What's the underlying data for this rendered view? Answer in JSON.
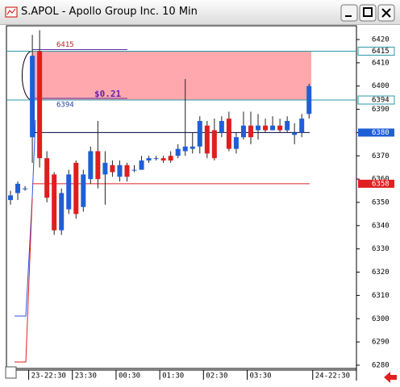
{
  "window": {
    "title": "S.APOL - Apollo Group Inc. 10 Min"
  },
  "chart_data": {
    "type": "candlestick",
    "categories": [
      null,
      null,
      null,
      "23-22:30",
      null,
      null,
      null,
      null,
      null,
      "23:30",
      null,
      null,
      null,
      null,
      null,
      "00:30",
      null,
      null,
      null,
      null,
      null,
      "01:30",
      null,
      null,
      null,
      null,
      null,
      "02:30",
      null,
      null,
      null,
      null,
      null,
      "03:30",
      null,
      null,
      null,
      null,
      null,
      null,
      null,
      null,
      "24-22:30"
    ],
    "open": [
      6351,
      6354,
      6356,
      6378,
      6415,
      6369,
      6362,
      6338,
      6347,
      6367,
      6348,
      6360,
      6372,
      6362,
      6366,
      6361,
      6366,
      6364,
      6364,
      6368,
      6369,
      6369,
      6370,
      6370,
      6372,
      6373,
      6374,
      6383,
      6381,
      6380,
      6386,
      6373,
      6378,
      6383,
      6381,
      6383,
      6381,
      6383,
      6381,
      6379,
      6380,
      6388,
      null
    ],
    "high": [
      6355,
      6359,
      6357,
      6422,
      6424,
      6372,
      6363,
      6356,
      6364,
      6368,
      6364,
      6374,
      6385,
      6372,
      6368,
      6368,
      6367,
      6366,
      6370,
      6370,
      6370,
      6370,
      6372,
      6375,
      6403,
      6380,
      6387,
      6385,
      6386,
      6387,
      6389,
      6380,
      6389,
      6389,
      6388,
      6386,
      6387,
      6386,
      6387,
      6384,
      6388,
      6401,
      null
    ],
    "low": [
      6349,
      6351,
      6355,
      6367,
      6365,
      6350,
      6336,
      6336,
      6345,
      6343,
      6346,
      6358,
      6356,
      6349,
      6361,
      6359,
      6359,
      6363,
      6364,
      6367,
      6368,
      6367,
      6367,
      6369,
      6370,
      6371,
      6371,
      6369,
      6368,
      6378,
      6372,
      6371,
      6377,
      6375,
      6377,
      6380,
      6381,
      6380,
      6380,
      6375,
      6378,
      6386,
      null
    ],
    "close": [
      6353,
      6358,
      6356,
      6413,
      6369,
      6352,
      6338,
      6354,
      6362,
      6345,
      6362,
      6372,
      6360,
      6367,
      6363,
      6366,
      6361,
      6364,
      6368,
      6369,
      6369,
      6368,
      6368,
      6373,
      6374,
      6374,
      6385,
      6371,
      6369,
      6385,
      6373,
      6378,
      6383,
      6378,
      6383,
      6381,
      6383,
      6381,
      6385,
      6380,
      6386,
      6400,
      null
    ],
    "up_color": "#1f5fd6",
    "down_color": "#e01e1e",
    "ylim": [
      6278.6,
      6425.9
    ],
    "yticks": [
      6280,
      6290,
      6300,
      6310,
      6320,
      6330,
      6340,
      6350,
      6360,
      6370,
      6380,
      6390,
      6400,
      6410,
      6420
    ],
    "levels": [
      {
        "value": 6415,
        "color": "#2a9aa8"
      },
      {
        "value": 6394,
        "color": "#2a9aa8"
      },
      {
        "value": 6380,
        "color": "#000040"
      },
      {
        "value": 6358,
        "color": "#e02020"
      }
    ],
    "zone_color": "#ff9aa0",
    "annotation": "$0.21"
  }
}
